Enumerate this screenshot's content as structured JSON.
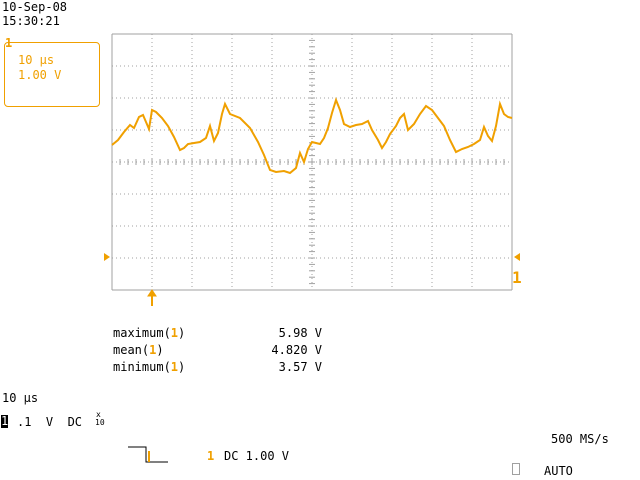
{
  "header": {
    "date": "10-Sep-08",
    "time": "15:30:21"
  },
  "channel_box": {
    "tab": "1",
    "timebase": "10 µs",
    "volts": "1.00 V"
  },
  "trace": {
    "color": "#f0a000",
    "grid_color": "#a0a0a0"
  },
  "markers": {
    "right_channel_marker": "1"
  },
  "measurements": [
    {
      "label": "maximum(",
      "ch": "1",
      "close": ")",
      "value": "5.98 V"
    },
    {
      "label": "mean(",
      "ch": "1",
      "close": ")",
      "value": "4.820 V"
    },
    {
      "label": "minimum(",
      "ch": "1",
      "close": ")",
      "value": "3.57 V"
    }
  ],
  "footer": {
    "timebase": "10 µs",
    "channel_num": "1",
    "channel_scale": ".1  V  DC",
    "probe_x": "x",
    "probe_10": "10",
    "sample_rate": "500 MS/s",
    "trigger_ch": "1",
    "trigger_desc": "DC 1.00 V",
    "mode": "AUTO"
  }
}
